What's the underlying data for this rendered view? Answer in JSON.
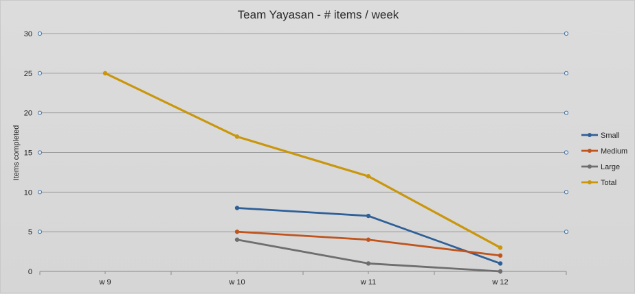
{
  "chart_data": {
    "type": "line",
    "title": "Team Yayasan - # items / week",
    "xlabel": "",
    "ylabel": "Items completed",
    "categories": [
      "w 9",
      "w 10",
      "w 11",
      "w 12"
    ],
    "ylim": [
      0,
      30
    ],
    "yticks": [
      0,
      5,
      10,
      15,
      20,
      25,
      30
    ],
    "grid": true,
    "legend_position": "right",
    "series": [
      {
        "name": "Small",
        "color": "#2e5f97",
        "values": [
          null,
          8,
          7,
          1
        ]
      },
      {
        "name": "Medium",
        "color": "#c0541c",
        "values": [
          null,
          5,
          4,
          2
        ]
      },
      {
        "name": "Large",
        "color": "#6e6e6e",
        "values": [
          null,
          4,
          1,
          0
        ]
      },
      {
        "name": "Total",
        "color": "#c9960c",
        "values": [
          25,
          17,
          12,
          3
        ]
      }
    ]
  }
}
